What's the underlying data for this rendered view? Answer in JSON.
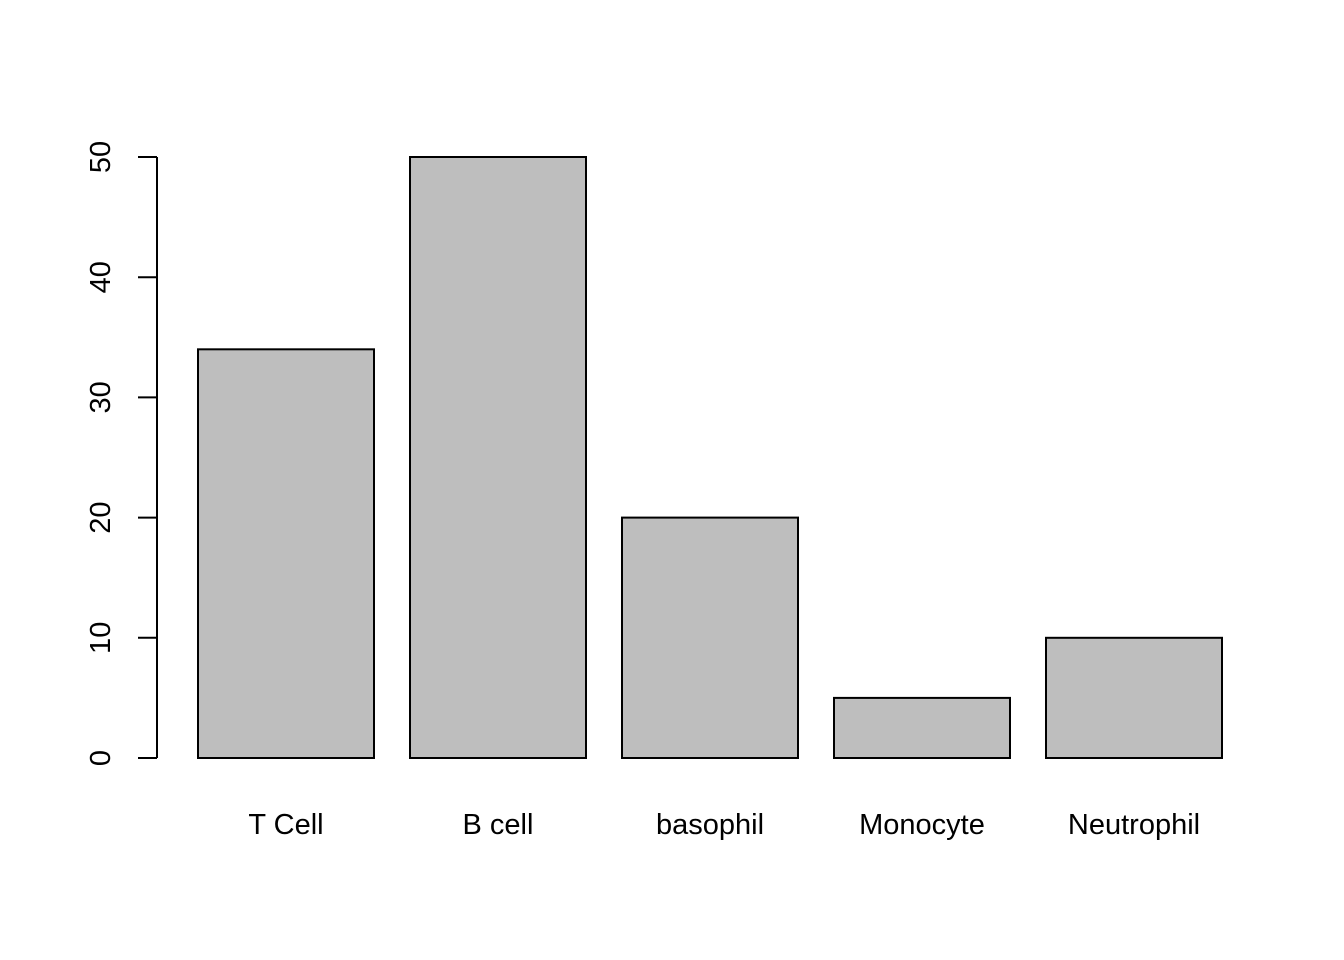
{
  "chart_data": {
    "type": "bar",
    "title": "",
    "xlabel": "",
    "ylabel": "",
    "categories": [
      "T Cell",
      "B cell",
      "basophil",
      "Monocyte",
      "Neutrophil"
    ],
    "values": [
      34,
      50,
      20,
      5,
      10
    ],
    "ylim": [
      0,
      50
    ],
    "y_ticks": [
      0,
      10,
      20,
      30,
      40,
      50
    ],
    "grid": false,
    "legend": "none",
    "colors": {
      "bar_fill": "#bebebe",
      "bar_stroke": "#000000",
      "axis": "#000000",
      "background": "#ffffff"
    }
  }
}
